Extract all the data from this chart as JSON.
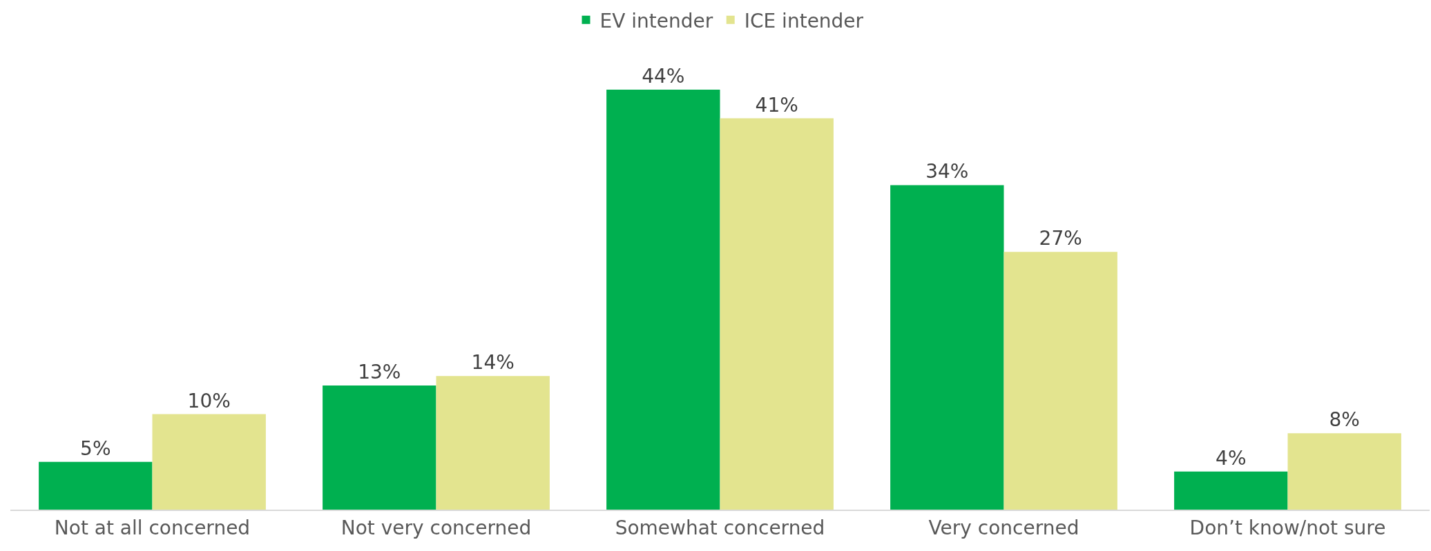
{
  "chart_data": {
    "type": "bar",
    "categories": [
      "Not at all concerned",
      "Not very concerned",
      "Somewhat concerned",
      "Very concerned",
      "Don’t know/not sure"
    ],
    "series": [
      {
        "name": "EV intender",
        "color": "#00b050",
        "values": [
          5,
          13,
          44,
          34,
          4
        ],
        "value_labels": [
          "5%",
          "13%",
          "44%",
          "34%",
          "4%"
        ]
      },
      {
        "name": "ICE intender",
        "color": "#e3e48f",
        "values": [
          10,
          14,
          41,
          27,
          8
        ],
        "value_labels": [
          "10%",
          "14%",
          "41%",
          "27%",
          "8%"
        ]
      }
    ],
    "legend": "top",
    "tick_labels": "x"
  }
}
